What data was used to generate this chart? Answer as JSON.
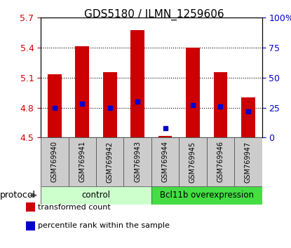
{
  "title": "GDS5180 / ILMN_1259606",
  "samples": [
    "GSM769940",
    "GSM769941",
    "GSM769942",
    "GSM769943",
    "GSM769944",
    "GSM769945",
    "GSM769946",
    "GSM769947"
  ],
  "bar_tops": [
    5.13,
    5.41,
    5.15,
    5.57,
    4.52,
    5.4,
    5.15,
    4.9
  ],
  "bar_bottom": 4.5,
  "percentile_ranks": [
    25,
    28,
    25,
    30,
    8,
    27,
    26,
    22
  ],
  "ylim_left": [
    4.5,
    5.7
  ],
  "ylim_right": [
    0,
    100
  ],
  "yticks_left": [
    4.5,
    4.8,
    5.1,
    5.4,
    5.7
  ],
  "yticks_right": [
    0,
    25,
    50,
    75,
    100
  ],
  "ytick_labels_right": [
    "0",
    "25",
    "50",
    "75",
    "100%"
  ],
  "bar_color": "#cc0000",
  "percentile_color": "#0000cc",
  "groups": [
    {
      "label": "control",
      "start": 0,
      "end": 4,
      "color": "#ccffcc"
    },
    {
      "label": "Bcl11b overexpression",
      "start": 4,
      "end": 8,
      "color": "#44dd44"
    }
  ],
  "protocol_label": "protocol",
  "legend_items": [
    {
      "label": "transformed count",
      "color": "#cc0000"
    },
    {
      "label": "percentile rank within the sample",
      "color": "#0000cc"
    }
  ],
  "sample_box_color": "#cccccc",
  "plot_bg": "#ffffff",
  "axis_color_left": "#cc0000",
  "axis_color_right": "#0000cc",
  "grid_color": "#000000",
  "grid_linestyle": ":",
  "grid_linewidth": 0.8,
  "title_fontsize": 11,
  "tick_fontsize": 9,
  "sample_fontsize": 7,
  "group_fontsize": 8.5,
  "legend_fontsize": 8,
  "protocol_fontsize": 9
}
